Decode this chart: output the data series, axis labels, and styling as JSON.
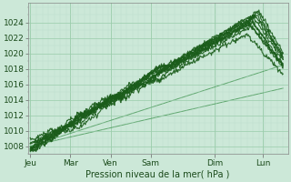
{
  "background_color": "#cce8d8",
  "plot_bg_color": "#cce8d8",
  "grid_color_major": "#99ccaa",
  "grid_color_minor": "#bbddcc",
  "line_color_dark": "#1a5c1a",
  "line_color_light": "#4a9a5a",
  "ylabel_text": "Pression niveau de la mer( hPa )",
  "x_tick_labels": [
    "Jeu",
    "Mar",
    "Ven",
    "Sam",
    "Dim",
    "Lun"
  ],
  "x_tick_positions": [
    0,
    0.83,
    1.67,
    2.5,
    3.83,
    4.83
  ],
  "ylim": [
    1007.0,
    1026.5
  ],
  "xlim": [
    -0.05,
    5.35
  ],
  "yticks": [
    1008,
    1010,
    1012,
    1014,
    1016,
    1018,
    1020,
    1022,
    1024
  ],
  "axis_fontsize": 7,
  "tick_fontsize": 6.5
}
